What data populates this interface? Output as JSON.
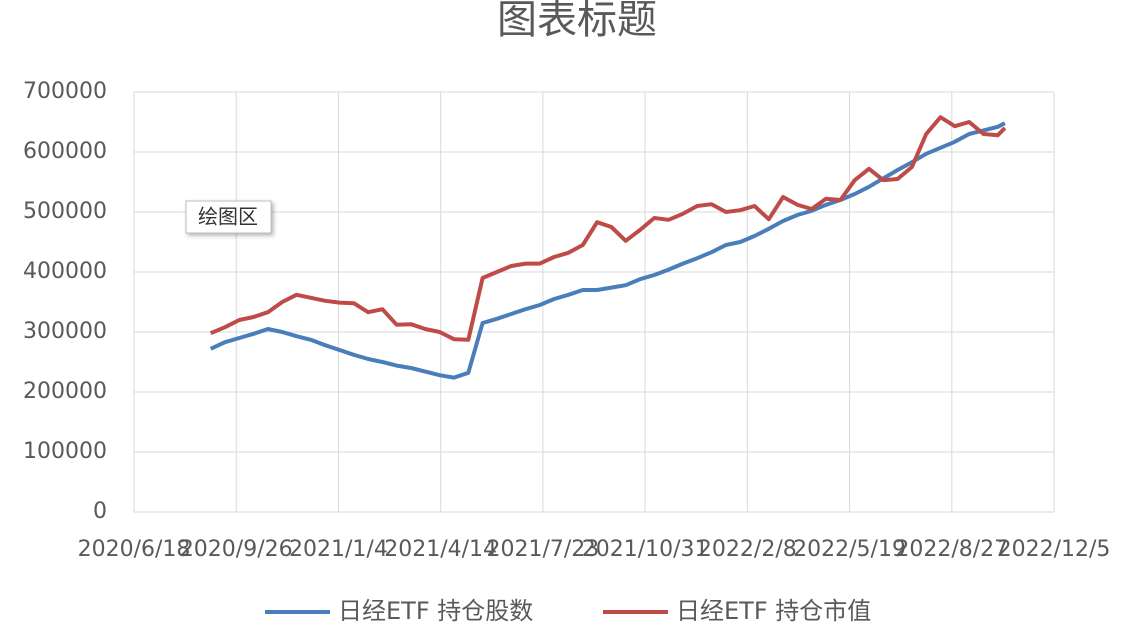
{
  "chart_data": {
    "type": "line",
    "title": "图表标题",
    "annotation": "绘图区",
    "x": [
      "2020/9/1",
      "2020/9/15",
      "2020/9/29",
      "2020/10/13",
      "2020/10/27",
      "2020/11/10",
      "2020/11/24",
      "2020/12/8",
      "2020/12/22",
      "2021/1/5",
      "2021/1/19",
      "2021/2/2",
      "2021/2/16",
      "2021/3/2",
      "2021/3/16",
      "2021/3/30",
      "2021/4/13",
      "2021/4/27",
      "2021/5/11",
      "2021/5/25",
      "2021/6/8",
      "2021/6/22",
      "2021/7/6",
      "2021/7/20",
      "2021/8/3",
      "2021/8/17",
      "2021/8/31",
      "2021/9/14",
      "2021/9/28",
      "2021/10/12",
      "2021/10/26",
      "2021/11/9",
      "2021/11/23",
      "2021/12/7",
      "2021/12/21",
      "2022/1/4",
      "2022/1/18",
      "2022/2/1",
      "2022/2/15",
      "2022/3/1",
      "2022/3/15",
      "2022/3/29",
      "2022/4/12",
      "2022/4/26",
      "2022/5/10",
      "2022/5/24",
      "2022/6/7",
      "2022/6/21",
      "2022/7/5",
      "2022/7/19",
      "2022/8/2",
      "2022/8/16",
      "2022/8/30",
      "2022/9/13",
      "2022/9/27",
      "2022/10/11",
      "2022/10/18"
    ],
    "series": [
      {
        "name": "日经ETF 持仓股数",
        "color": "#4a7ebb",
        "values": [
          272000,
          283000,
          290000,
          297000,
          305000,
          300000,
          293000,
          287000,
          278000,
          270000,
          262000,
          255000,
          250000,
          244000,
          240000,
          234000,
          228000,
          224000,
          232000,
          315000,
          322000,
          330000,
          338000,
          345000,
          355000,
          362000,
          370000,
          370000,
          374000,
          378000,
          388000,
          395000,
          404000,
          414000,
          423000,
          433000,
          445000,
          450000,
          460000,
          472000,
          485000,
          495000,
          502000,
          512000,
          520000,
          530000,
          542000,
          556000,
          570000,
          583000,
          597000,
          607000,
          617000,
          630000,
          636000,
          642000,
          648000
        ]
      },
      {
        "name": "日经ETF 持仓市值",
        "color": "#be4b48",
        "values": [
          298000,
          308000,
          320000,
          325000,
          333000,
          350000,
          362000,
          357000,
          352000,
          349000,
          348000,
          333000,
          338000,
          312000,
          313000,
          305000,
          300000,
          288000,
          287000,
          390000,
          400000,
          410000,
          414000,
          414000,
          425000,
          432000,
          445000,
          483000,
          475000,
          452000,
          470000,
          490000,
          487000,
          497000,
          510000,
          513000,
          500000,
          503000,
          510000,
          488000,
          525000,
          512000,
          505000,
          522000,
          520000,
          553000,
          572000,
          553000,
          555000,
          575000,
          630000,
          658000,
          643000,
          650000,
          630000,
          628000,
          640000
        ]
      }
    ],
    "xlim": [
      "2020/6/18",
      "2022/12/5"
    ],
    "xticks": [
      "2020/6/18",
      "2020/9/26",
      "2021/1/4",
      "2021/4/14",
      "2021/7/23",
      "2021/10/31",
      "2022/2/8",
      "2022/5/19",
      "2022/8/27",
      "2022/12/5"
    ],
    "ylim": [
      0,
      700000
    ],
    "yticks": [
      0,
      100000,
      200000,
      300000,
      400000,
      500000,
      600000,
      700000
    ],
    "grid": true,
    "legend": "bottom"
  }
}
